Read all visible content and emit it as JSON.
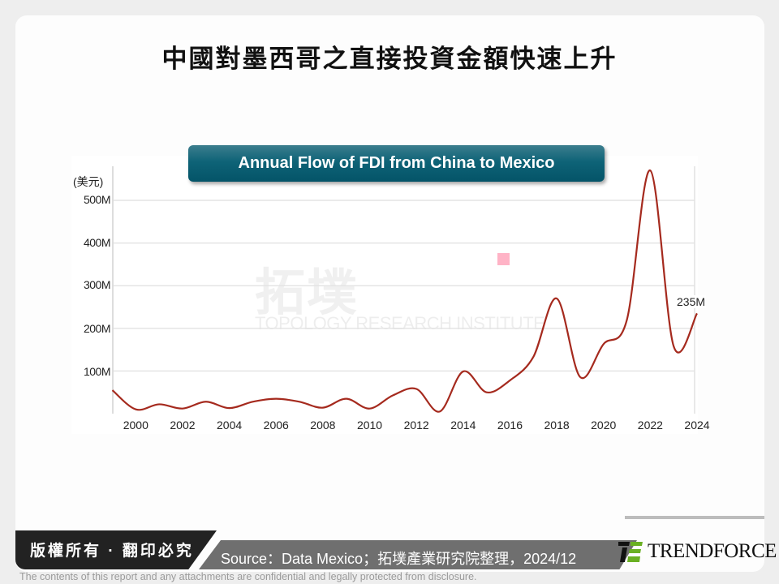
{
  "header": {
    "title": "中國對墨西哥之直接投資金額快速上升"
  },
  "chart_banner": {
    "title": "Annual Flow of FDI from China to Mexico"
  },
  "watermark": {
    "cn": "拓墣",
    "en": "TOPOLOGY RESEARCH INSTITUTE"
  },
  "axis": {
    "y_unit": "(美元)",
    "y_ticks": [
      "500M",
      "400M",
      "300M",
      "200M",
      "100M"
    ],
    "x_ticks": [
      "2000",
      "2002",
      "2004",
      "2006",
      "2008",
      "2010",
      "2012",
      "2014",
      "2016",
      "2018",
      "2020",
      "2022",
      "2024"
    ]
  },
  "end_label": "235M",
  "footer": {
    "copyright": "版權所有 · 翻印必究",
    "source": "Source：Data Mexico；拓墣產業研究院整理，2024/12",
    "logo_text": "TRENDFORCE",
    "disclaimer": "The contents of this report and any attachments are confidential and legally protected from disclosure."
  },
  "colors": {
    "line": "#a52a1e",
    "banner": "#0e6377",
    "marker": "#ffb3c6",
    "logo_green": "#6ab023"
  },
  "chart_data": {
    "type": "line",
    "title": "Annual Flow of FDI from China to Mexico",
    "xlabel": "",
    "ylabel": "(美元)",
    "x": [
      1999,
      2000,
      2001,
      2002,
      2003,
      2004,
      2005,
      2006,
      2007,
      2008,
      2009,
      2010,
      2011,
      2012,
      2013,
      2014,
      2015,
      2016,
      2017,
      2018,
      2019,
      2020,
      2021,
      2022,
      2023,
      2024
    ],
    "series": [
      {
        "name": "FDI from China to Mexico (USD)",
        "values": [
          55,
          10,
          22,
          12,
          28,
          13,
          28,
          35,
          28,
          14,
          35,
          12,
          43,
          58,
          5,
          99,
          50,
          78,
          133,
          270,
          86,
          163,
          220,
          570,
          158,
          235
        ]
      }
    ],
    "units": "million USD",
    "ylim": [
      0,
      580
    ],
    "y_ticks": [
      100,
      200,
      300,
      400,
      500
    ],
    "grid": true,
    "annotations": [
      {
        "x": 2024,
        "text": "235M"
      }
    ],
    "legend": "none"
  }
}
